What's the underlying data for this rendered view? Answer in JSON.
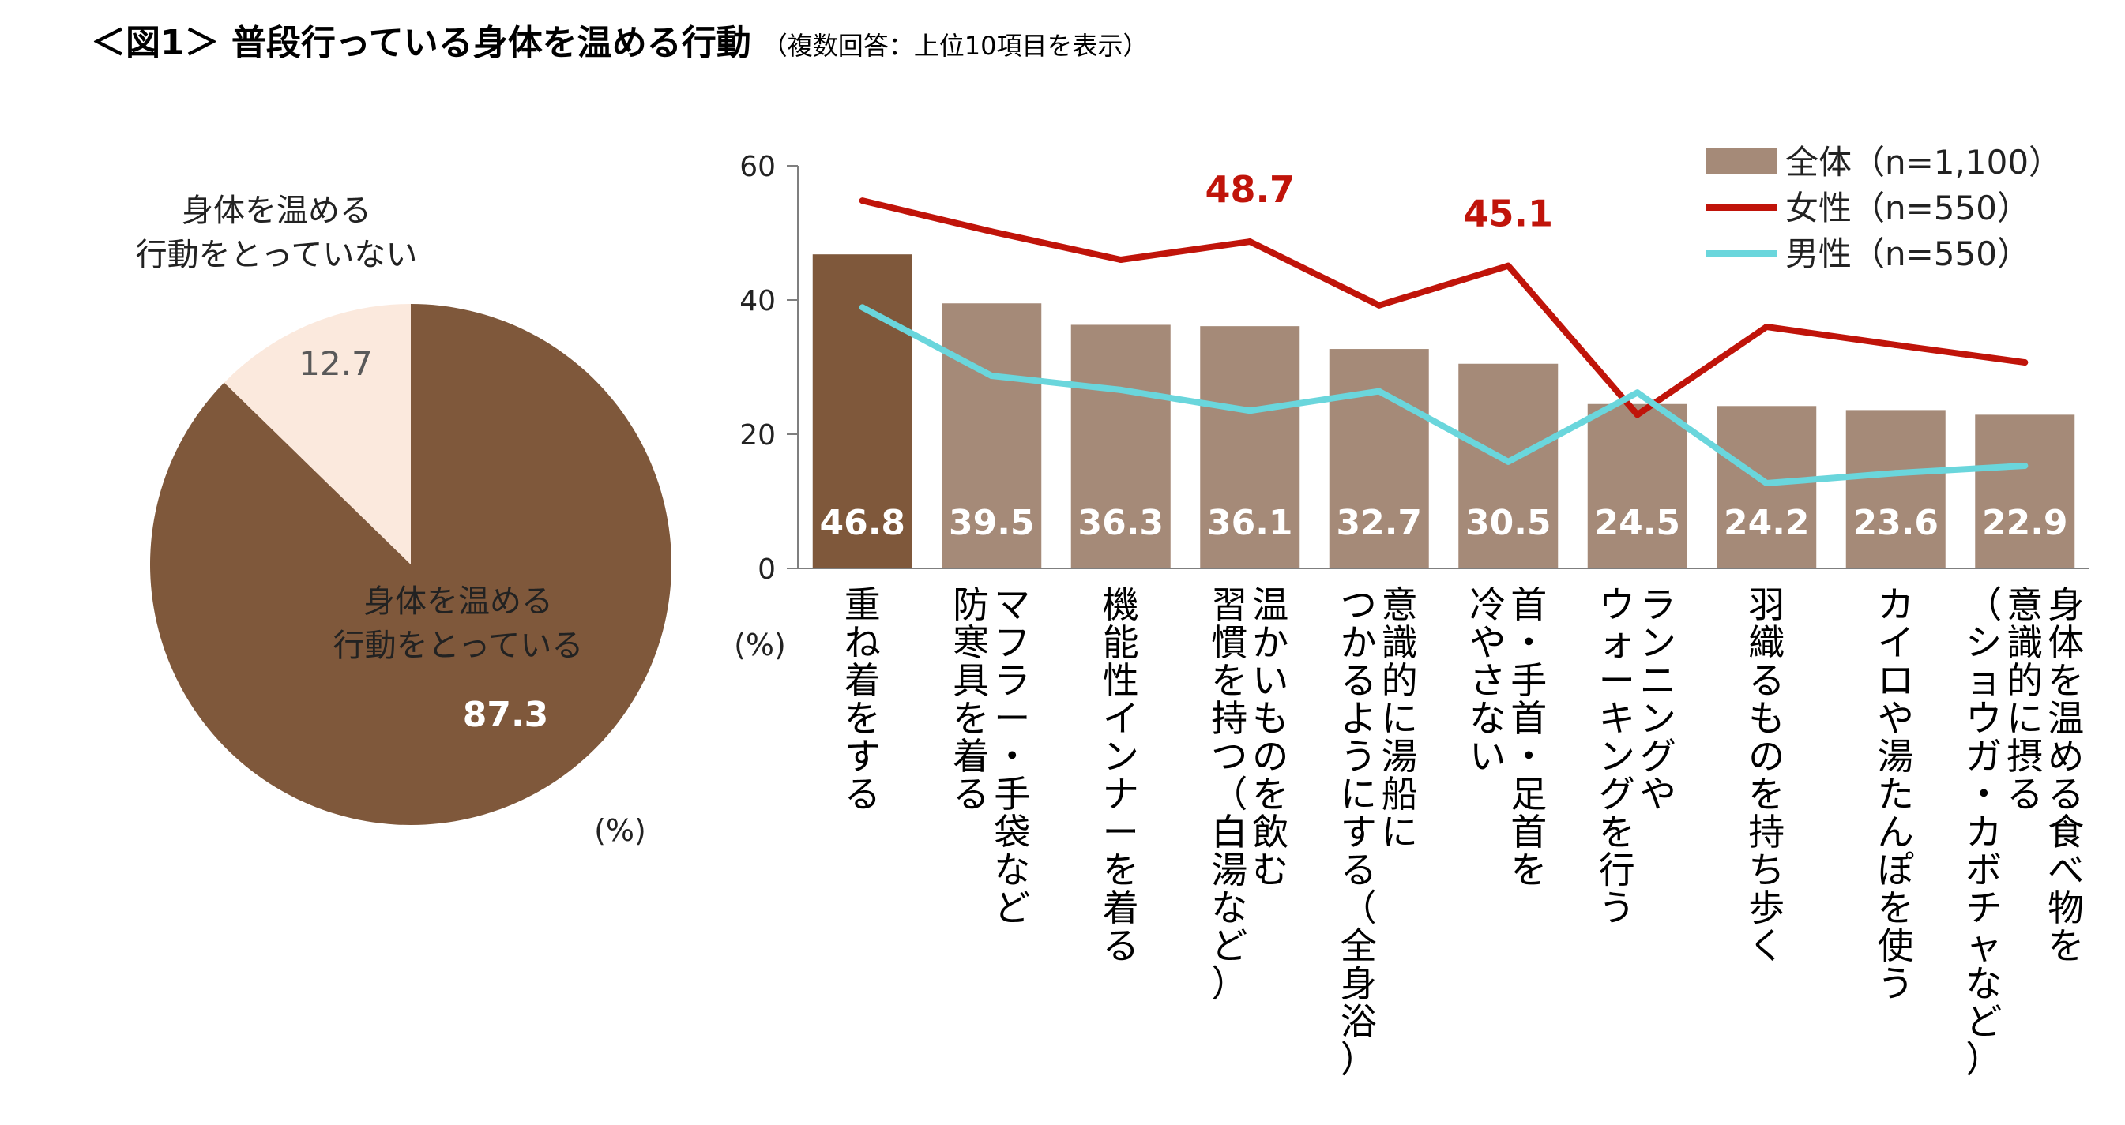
{
  "title": {
    "main": "＜図1＞ 普段行っている身体を温める行動",
    "sub": "（複数回答：上位10項目を表示）"
  },
  "chart_data": [
    {
      "type": "pie",
      "unit": "(%)",
      "slices": [
        {
          "label_lines": [
            "身体を温める",
            "行動をとっている"
          ],
          "value": 87.3,
          "color": "#7f583b",
          "value_color": "#ffffff"
        },
        {
          "label_lines": [
            "身体を温める",
            "行動をとっていない"
          ],
          "value": 12.7,
          "color": "#fbe9dd",
          "value_color": "#595959"
        }
      ]
    },
    {
      "type": "bar",
      "unit": "(%)",
      "ylim": [
        0,
        60
      ],
      "yticks": [
        0,
        20,
        40,
        60
      ],
      "categories": [
        [
          "重ね着をする"
        ],
        [
          "マフラー・手袋など",
          "防寒具を着る"
        ],
        [
          "機能性インナーを着る"
        ],
        [
          "温かいものを飲む",
          "習慣を持つ（白湯など）"
        ],
        [
          "意識的に湯船に",
          "つかるようにする（全身浴）"
        ],
        [
          "首・手首・足首を",
          "冷やさない"
        ],
        [
          "ランニングや",
          "ウォーキングを行う"
        ],
        [
          "羽織るものを持ち歩く"
        ],
        [
          "カイロや湯たんぽを使う"
        ],
        [
          "身体を温める食べ物を",
          "意識的に摂る",
          "（ショウガ・カボチャなど）"
        ]
      ],
      "series": [
        {
          "name": "全体（n=1,100）",
          "type": "bar",
          "color": "#a58a78",
          "highlight_color": "#7f583b",
          "values": [
            46.8,
            39.5,
            36.3,
            36.1,
            32.7,
            30.5,
            24.5,
            24.2,
            23.6,
            22.9
          ]
        },
        {
          "name": "女性（n=550）",
          "type": "line",
          "color": "#c0140a",
          "values": [
            54.8,
            50.2,
            46.0,
            48.7,
            39.2,
            45.1,
            22.9,
            36.0,
            33.3,
            30.7
          ]
        },
        {
          "name": "男性（n=550）",
          "type": "line",
          "color": "#6ad6dc",
          "values": [
            38.9,
            28.7,
            26.6,
            23.5,
            26.4,
            15.9,
            26.2,
            12.7,
            14.2,
            15.3
          ]
        }
      ],
      "annotations": [
        {
          "series": "女性（n=550）",
          "index": 3,
          "text": "48.7"
        },
        {
          "series": "女性（n=550）",
          "index": 5,
          "text": "45.1"
        }
      ]
    }
  ]
}
